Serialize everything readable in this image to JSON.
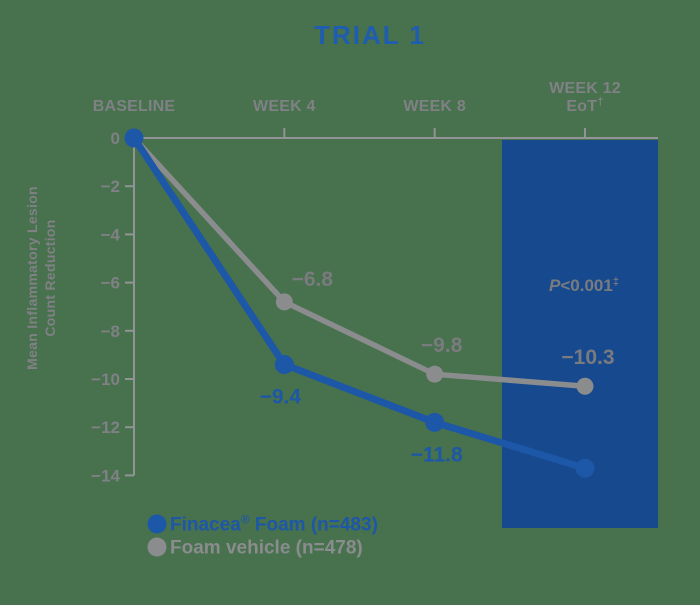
{
  "title": "TRIAL 1",
  "colors": {
    "background": "#48714E",
    "title_blue": "#1E5DB0",
    "brand_blue": "#1D57A7",
    "box_blue": "#17498F",
    "line_gray": "#8A8C8E",
    "axis_gray": "#919396",
    "axis_text": "#7F8184",
    "label_gray": "#797B7E"
  },
  "chart_data": {
    "type": "line",
    "title": "TRIAL 1",
    "categories": [
      "BASELINE",
      "WEEK 4",
      "WEEK 8",
      "WEEK 12 EoT†"
    ],
    "x_labels": [
      {
        "lines": [
          "BASELINE"
        ]
      },
      {
        "lines": [
          "WEEK 4"
        ]
      },
      {
        "lines": [
          "WEEK 8"
        ]
      },
      {
        "lines": [
          "WEEK 12",
          "EoT"
        ],
        "line2_sup": "†"
      }
    ],
    "ylabel_lines": [
      "Mean Inflammatory Lesion",
      "Count Reduction"
    ],
    "ylabel": "Mean Inflammatory Lesion Count Reduction",
    "ylim": [
      -14,
      0
    ],
    "y_ticks": [
      0,
      -2,
      -4,
      -6,
      -8,
      -10,
      -12,
      -14
    ],
    "y_tick_labels": [
      "0",
      "−2",
      "−4",
      "−6",
      "−8",
      "−10",
      "−12",
      "−14"
    ],
    "grid": false,
    "legend_position": "bottom-left",
    "highlight_column": "WEEK 12 EoT†",
    "series": [
      {
        "name": "Finacea® Foam (n=483)",
        "color_key": "brand_blue",
        "values": [
          0,
          -9.4,
          -11.8,
          -13.7
        ],
        "point_labels": [
          "",
          "−9.4",
          "−11.8",
          ""
        ]
      },
      {
        "name": "Foam vehicle (n=478)",
        "color_key": "line_gray",
        "values": [
          0,
          -6.8,
          -9.8,
          -10.3
        ],
        "point_labels": [
          "",
          "−6.8",
          "−9.8",
          "−10.3"
        ]
      }
    ],
    "annotation": {
      "p_italic": "P",
      "p_text": "<0.001",
      "p_sup": "‡"
    }
  },
  "legend": {
    "items": [
      {
        "text": "Finacea",
        "sup": "®",
        "rest": " Foam (n=483)",
        "color_key": "brand_blue"
      },
      {
        "text": "Foam vehicle (n=478)",
        "sup": "",
        "rest": "",
        "color_key": "line_gray"
      }
    ]
  }
}
